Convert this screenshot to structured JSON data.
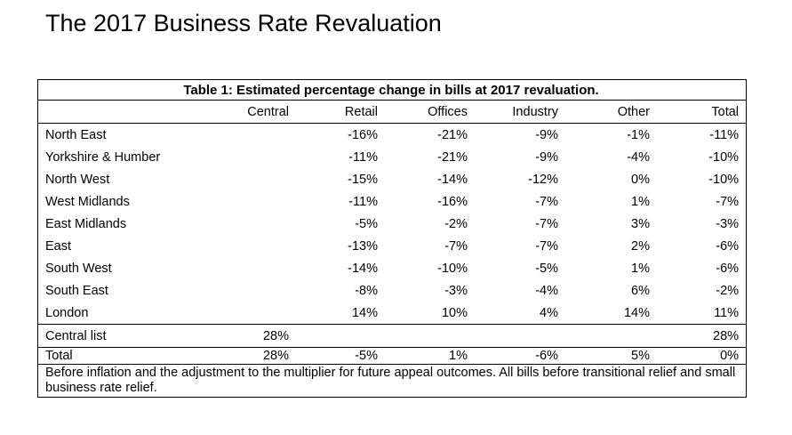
{
  "title": "The 2017 Business Rate Revaluation",
  "table": {
    "caption": "Table 1: Estimated percentage change in bills at 2017 revaluation.",
    "columns": [
      "",
      "Central",
      "Retail",
      "Offices",
      "Industry",
      "Other",
      "Total"
    ],
    "rows": [
      {
        "region": "North East",
        "central": "",
        "retail": "-16%",
        "offices": "-21%",
        "industry": "-9%",
        "other": "-1%",
        "total": "-11%"
      },
      {
        "region": "Yorkshire & Humber",
        "central": "",
        "retail": "-11%",
        "offices": "-21%",
        "industry": "-9%",
        "other": "-4%",
        "total": "-10%"
      },
      {
        "region": "North West",
        "central": "",
        "retail": "-15%",
        "offices": "-14%",
        "industry": "-12%",
        "other": "0%",
        "total": "-10%"
      },
      {
        "region": "West Midlands",
        "central": "",
        "retail": "-11%",
        "offices": "-16%",
        "industry": "-7%",
        "other": "1%",
        "total": "-7%"
      },
      {
        "region": "East Midlands",
        "central": "",
        "retail": "-5%",
        "offices": "-2%",
        "industry": "-7%",
        "other": "3%",
        "total": "-3%"
      },
      {
        "region": "East",
        "central": "",
        "retail": "-13%",
        "offices": "-7%",
        "industry": "-7%",
        "other": "2%",
        "total": "-6%"
      },
      {
        "region": "South West",
        "central": "",
        "retail": "-14%",
        "offices": "-10%",
        "industry": "-5%",
        "other": "1%",
        "total": "-6%"
      },
      {
        "region": "South East",
        "central": "",
        "retail": "-8%",
        "offices": "-3%",
        "industry": "-4%",
        "other": "6%",
        "total": "-2%"
      },
      {
        "region": "London",
        "central": "",
        "retail": "14%",
        "offices": "10%",
        "industry": "4%",
        "other": "14%",
        "total": "11%"
      }
    ],
    "central_row": {
      "region": "Central list",
      "central": "28%",
      "retail": "",
      "offices": "",
      "industry": "",
      "other": "",
      "total": "28%"
    },
    "total_row": {
      "region": "Total",
      "central": "28%",
      "retail": "-5%",
      "offices": "1%",
      "industry": "-6%",
      "other": "5%",
      "total": "0%"
    },
    "note": "Before inflation and the adjustment to the multiplier for future appeal outcomes.  All bills before transitional relief and small business rate relief."
  }
}
